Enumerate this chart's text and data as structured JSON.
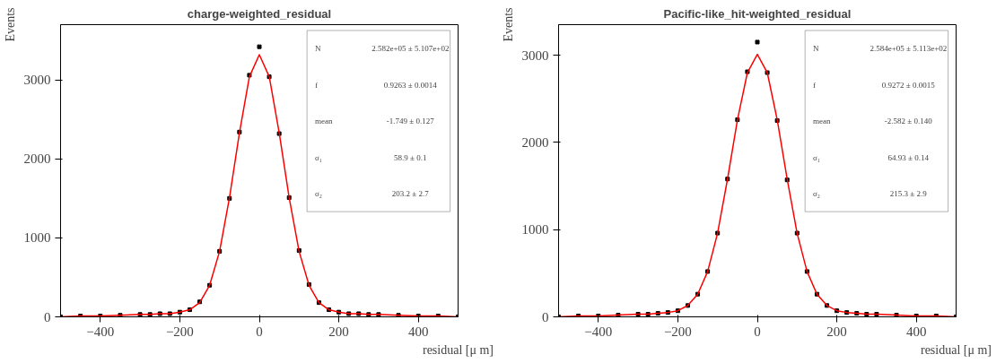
{
  "chart_data": [
    {
      "type": "scatter",
      "title": "charge-weighted_residual",
      "xlabel": "residual [μ m]",
      "ylabel": "Events",
      "xlim": [
        -500,
        500
      ],
      "ylim": [
        0,
        3700
      ],
      "xticks": [
        -400,
        -200,
        0,
        200,
        400
      ],
      "yticks": [
        0,
        1000,
        2000,
        3000
      ],
      "grid": false,
      "annotations": [
        "N",
        "2.582e+05 ± 5.107e+02",
        "f",
        "0.9263 ± 0.0014",
        "mean",
        "-1.749 ± 0.127",
        "σ₁",
        "58.9 ± 0.1",
        "σ₂",
        "203.2 ± 2.7"
      ],
      "series": [
        {
          "color": "#000000",
          "marker": "square",
          "x": [
            -500,
            -450,
            -400,
            -350,
            -300,
            -275,
            -250,
            -225,
            -200,
            -175,
            -150,
            -125,
            -100,
            -75,
            -50,
            -25,
            0,
            25,
            50,
            75,
            100,
            125,
            150,
            175,
            200,
            225,
            250,
            275,
            300,
            350,
            400,
            450,
            500
          ],
          "values": [
            0,
            10,
            10,
            20,
            30,
            30,
            40,
            40,
            60,
            90,
            190,
            400,
            830,
            1500,
            2340,
            3060,
            3420,
            3040,
            2320,
            1510,
            840,
            410,
            180,
            90,
            60,
            40,
            40,
            30,
            30,
            20,
            10,
            10,
            0
          ]
        },
        {
          "type": "line",
          "color": "#ff0000",
          "marker": "none",
          "x": [
            -500,
            -450,
            -400,
            -350,
            -300,
            -275,
            -250,
            -225,
            -200,
            -175,
            -150,
            -125,
            -100,
            -75,
            -50,
            -25,
            0,
            25,
            50,
            75,
            100,
            125,
            150,
            175,
            200,
            225,
            250,
            275,
            300,
            350,
            400,
            450,
            500
          ],
          "values": [
            0,
            10,
            10,
            20,
            30,
            30,
            40,
            40,
            60,
            90,
            180,
            400,
            830,
            1510,
            2330,
            3040,
            3320,
            3040,
            2330,
            1510,
            830,
            400,
            180,
            90,
            60,
            40,
            40,
            30,
            30,
            20,
            10,
            10,
            0
          ]
        }
      ]
    },
    {
      "type": "scatter",
      "title": "Pacific-like_hit-weighted_residual",
      "xlabel": "residual [μ m]",
      "ylabel": "Events",
      "xlim": [
        -500,
        500
      ],
      "ylim": [
        0,
        3350
      ],
      "xticks": [
        -400,
        -200,
        0,
        200,
        400
      ],
      "yticks": [
        0,
        1000,
        2000,
        3000
      ],
      "grid": false,
      "annotations": [
        "N",
        "2.584e+05 ± 5.113e+02",
        "f",
        "0.9272 ± 0.0015",
        "mean",
        "-2.582 ± 0.140",
        "σ₁",
        "64.93 ± 0.14",
        "σ₂",
        "215.3 ± 2.9"
      ],
      "series": [
        {
          "color": "#000000",
          "marker": "square",
          "x": [
            -500,
            -450,
            -400,
            -350,
            -300,
            -275,
            -250,
            -225,
            -200,
            -175,
            -150,
            -125,
            -100,
            -75,
            -50,
            -25,
            0,
            25,
            50,
            75,
            100,
            125,
            150,
            175,
            200,
            225,
            250,
            275,
            300,
            350,
            400,
            450,
            500
          ],
          "values": [
            0,
            10,
            10,
            20,
            30,
            30,
            40,
            50,
            70,
            130,
            260,
            520,
            960,
            1580,
            2260,
            2810,
            3150,
            2800,
            2250,
            1570,
            960,
            520,
            260,
            130,
            70,
            50,
            40,
            30,
            30,
            20,
            10,
            10,
            0
          ]
        },
        {
          "type": "line",
          "color": "#ff0000",
          "marker": "none",
          "x": [
            -500,
            -450,
            -400,
            -350,
            -300,
            -275,
            -250,
            -225,
            -200,
            -175,
            -150,
            -125,
            -100,
            -75,
            -50,
            -25,
            0,
            25,
            50,
            75,
            100,
            125,
            150,
            175,
            200,
            225,
            250,
            275,
            300,
            350,
            400,
            450,
            500
          ],
          "values": [
            0,
            10,
            10,
            20,
            30,
            30,
            40,
            50,
            70,
            130,
            260,
            520,
            960,
            1580,
            2260,
            2800,
            3010,
            2800,
            2260,
            1580,
            960,
            520,
            260,
            130,
            70,
            50,
            40,
            30,
            30,
            20,
            10,
            10,
            0
          ]
        }
      ]
    }
  ]
}
